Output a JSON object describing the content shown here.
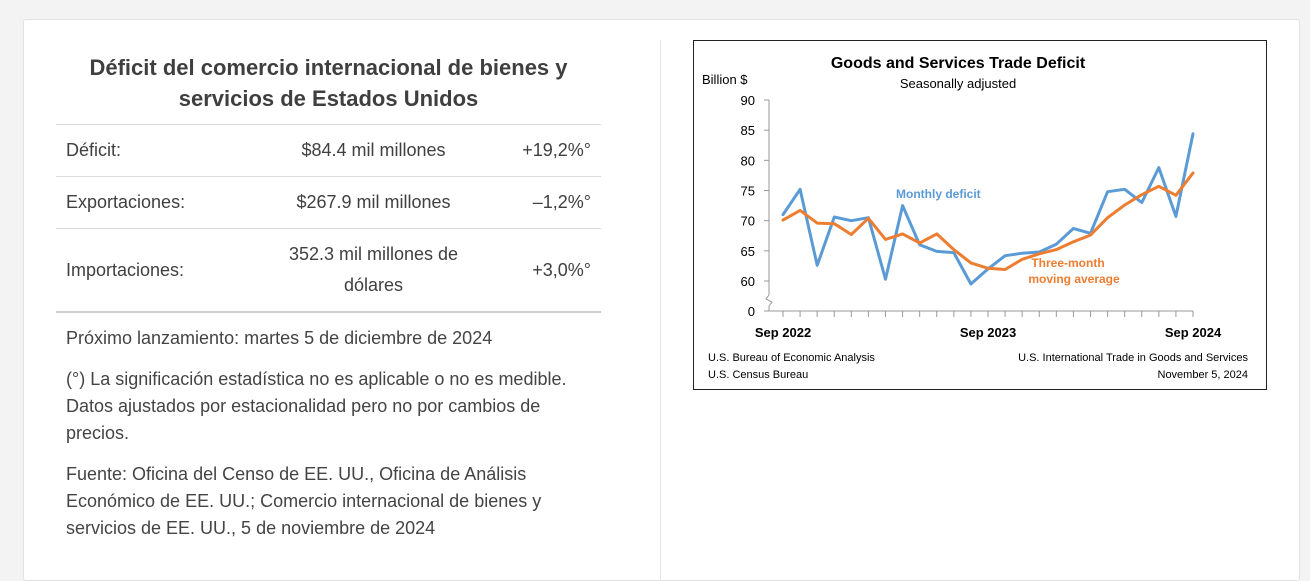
{
  "summary": {
    "title": "Déficit del comercio internacional de bienes y servicios de Estados Unidos",
    "rows": [
      {
        "label": "Déficit:",
        "value": "$84.4 mil millones",
        "change": "+19,2%°"
      },
      {
        "label": "Exportaciones:",
        "value": "$267.9 mil millones",
        "change": "–1,2%°"
      },
      {
        "label": "Importaciones:",
        "value": "352.3 mil millones de dólares",
        "change": "+3,0%°"
      }
    ],
    "next_release": "Próximo lanzamiento: martes 5 de diciembre de 2024",
    "footnote": "(°) La significación estadística no es aplicable o no es medible. Datos ajustados por estacionalidad pero no por cambios de precios.",
    "source": "Fuente: Oficina del Censo de EE. UU., Oficina de Análisis Económico de EE. UU.; Comercio internacional de bienes y servicios de EE. UU., 5 de noviembre de 2024"
  },
  "chart_data": {
    "type": "line",
    "title": "Goods and Services Trade Deficit",
    "subtitle": "Seasonally adjusted",
    "ylabel": "Billion $",
    "yticks": [
      0,
      60,
      65,
      70,
      75,
      80,
      85,
      90
    ],
    "ylim": [
      60,
      90
    ],
    "y_axis_break": true,
    "x": [
      "Sep 2022",
      "Oct 2022",
      "Nov 2022",
      "Dec 2022",
      "Jan 2023",
      "Feb 2023",
      "Mar 2023",
      "Apr 2023",
      "May 2023",
      "Jun 2023",
      "Jul 2023",
      "Aug 2023",
      "Sep 2023",
      "Oct 2023",
      "Nov 2023",
      "Dec 2023",
      "Jan 2024",
      "Feb 2024",
      "Mar 2024",
      "Apr 2024",
      "May 2024",
      "Jun 2024",
      "Jul 2024",
      "Aug 2024",
      "Sep 2024"
    ],
    "xtick_labels": [
      "Sep 2022",
      "Sep 2023",
      "Sep 2024"
    ],
    "series": [
      {
        "name": "Monthly deficit",
        "color": "#5b9bd5",
        "values": [
          71.0,
          75.2,
          62.6,
          70.6,
          70.0,
          70.5,
          60.3,
          72.5,
          66.0,
          64.9,
          64.7,
          59.5,
          62.0,
          64.2,
          64.6,
          64.8,
          66.1,
          68.7,
          67.9,
          74.8,
          75.2,
          73.0,
          78.8,
          70.7,
          84.4
        ]
      },
      {
        "name": "Three-month moving average",
        "label_lines": [
          "Three-month",
          "moving average"
        ],
        "color": "#ed7d31",
        "values": [
          70.1,
          71.7,
          69.6,
          69.5,
          67.7,
          70.4,
          66.9,
          67.8,
          66.3,
          67.8,
          65.2,
          63.0,
          62.1,
          61.9,
          63.6,
          64.5,
          65.2,
          66.5,
          67.6,
          70.5,
          72.6,
          74.3,
          75.7,
          74.2,
          77.9
        ]
      }
    ],
    "sources_left": [
      "U.S. Bureau of Economic Analysis",
      "U.S. Census Bureau"
    ],
    "sources_right": [
      "U.S. International Trade in Goods and Services",
      "November 5, 2024"
    ]
  }
}
